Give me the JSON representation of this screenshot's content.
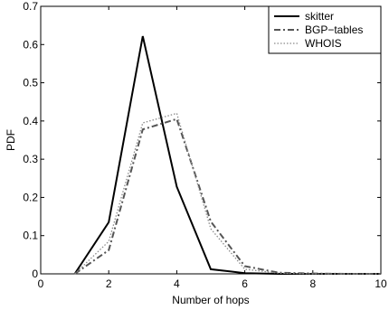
{
  "chart_data": {
    "type": "line",
    "xlabel": "Number of hops",
    "ylabel": "PDF",
    "xlim": [
      0,
      10
    ],
    "ylim": [
      0,
      0.7
    ],
    "xticks": [
      0,
      2,
      4,
      6,
      8,
      10
    ],
    "yticks": [
      0,
      0.1,
      0.2,
      0.3,
      0.4,
      0.5,
      0.6,
      0.7
    ],
    "xtick_labels": [
      "0",
      "2",
      "4",
      "6",
      "8",
      "10"
    ],
    "ytick_labels": [
      "0",
      "0.1",
      "0.2",
      "0.3",
      "0.4",
      "0.5",
      "0.6",
      "0.7"
    ],
    "grid": false,
    "legend_position": "top-right",
    "series": [
      {
        "name": "skitter",
        "style": "solid",
        "color": "#000000",
        "x": [
          1,
          2,
          3,
          4,
          5,
          6,
          7,
          8,
          9,
          10
        ],
        "y": [
          0,
          0.135,
          0.622,
          0.228,
          0.012,
          0.002,
          0,
          0,
          0,
          0
        ]
      },
      {
        "name": "BGP−tables",
        "style": "dashdot",
        "color": "#555555",
        "x": [
          1,
          2,
          3,
          4,
          5,
          6,
          7,
          8,
          9,
          10
        ],
        "y": [
          0,
          0.062,
          0.378,
          0.405,
          0.137,
          0.02,
          0.003,
          0.001,
          0,
          0
        ]
      },
      {
        "name": "WHOIS",
        "style": "dotted",
        "color": "#8a8a8a",
        "x": [
          1,
          2,
          3,
          4,
          5,
          6,
          7,
          8,
          9,
          10
        ],
        "y": [
          0,
          0.085,
          0.395,
          0.42,
          0.118,
          0.012,
          0.002,
          0,
          0,
          0
        ]
      }
    ]
  }
}
